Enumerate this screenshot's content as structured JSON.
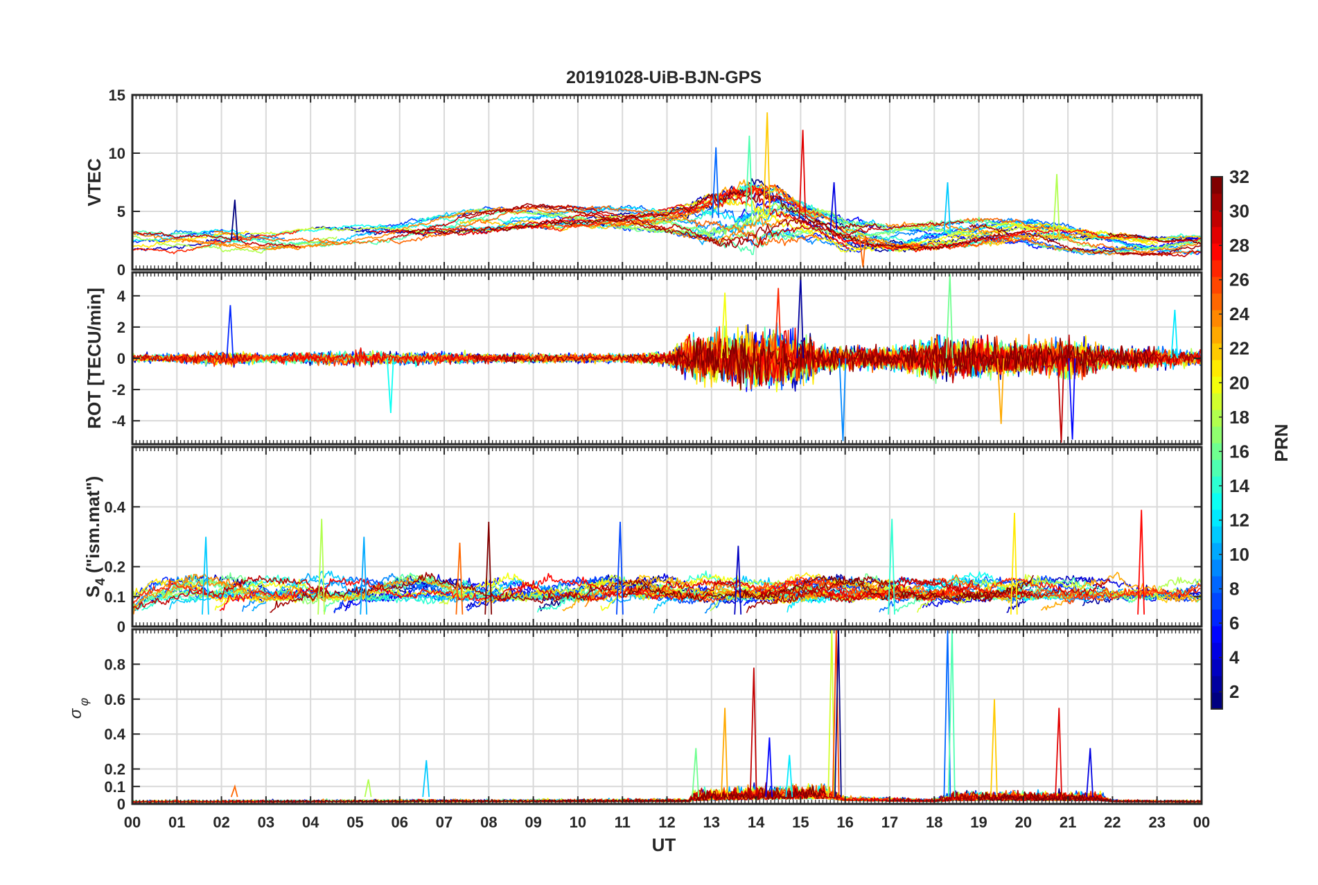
{
  "chart_data": {
    "type": "line",
    "title": "20191028-UiB-BJN-GPS",
    "xlabel": "UT",
    "x_tick_labels": [
      "00",
      "01",
      "02",
      "03",
      "04",
      "05",
      "06",
      "07",
      "08",
      "09",
      "10",
      "11",
      "12",
      "13",
      "14",
      "15",
      "16",
      "17",
      "18",
      "19",
      "20",
      "21",
      "22",
      "23",
      "00"
    ],
    "x_range_hours": [
      0,
      24
    ],
    "grid": true,
    "panels": [
      {
        "key": "vtec",
        "ylabel": "VTEC",
        "ylim": [
          0,
          15
        ],
        "yticks": [
          0,
          5,
          10,
          15
        ],
        "envelope": {
          "x": [
            0,
            1,
            2,
            3,
            4,
            5,
            6,
            7,
            8,
            9,
            10,
            11,
            12,
            12.5,
            13,
            13.5,
            14,
            14.5,
            15,
            15.5,
            16,
            17,
            18,
            19,
            20,
            21,
            22,
            23,
            24
          ],
          "base": [
            2.5,
            2.3,
            2.5,
            2.5,
            2.8,
            3.0,
            3.3,
            3.8,
            4.3,
            4.6,
            4.6,
            4.4,
            4.2,
            4.2,
            4.4,
            4.6,
            5.0,
            4.8,
            4.4,
            3.8,
            3.0,
            2.8,
            3.0,
            3.2,
            3.2,
            2.6,
            2.2,
            2.0,
            2.2
          ],
          "spread": [
            1.3,
            1.3,
            1.4,
            1.2,
            1.2,
            1.3,
            1.4,
            1.5,
            1.5,
            1.4,
            1.4,
            1.4,
            1.5,
            2.0,
            3.0,
            3.5,
            4.0,
            3.5,
            2.5,
            2.0,
            2.0,
            1.6,
            1.7,
            1.8,
            1.6,
            1.6,
            1.3,
            1.2,
            1.2
          ]
        },
        "peaks": [
          {
            "x": 2.3,
            "y": 6.0
          },
          {
            "x": 13.1,
            "y": 10.5
          },
          {
            "x": 13.85,
            "y": 11.5
          },
          {
            "x": 14.25,
            "y": 13.5
          },
          {
            "x": 15.05,
            "y": 12.0
          },
          {
            "x": 15.75,
            "y": 7.5
          },
          {
            "x": 18.3,
            "y": 7.5
          },
          {
            "x": 20.75,
            "y": 8.2
          },
          {
            "x": 16.4,
            "y": 0.2
          }
        ]
      },
      {
        "key": "rot",
        "ylabel": "ROT [TECU/min]",
        "ylim": [
          -5.5,
          5.5
        ],
        "yticks": [
          -4,
          -2,
          0,
          2,
          4
        ],
        "envelope": {
          "x": [
            0,
            1,
            2,
            3,
            4,
            5,
            6,
            7,
            8,
            9,
            10,
            11,
            12,
            12.5,
            13,
            14,
            15,
            15.5,
            16,
            17,
            18,
            19,
            20,
            21,
            22,
            23,
            24
          ],
          "amp": [
            0.3,
            0.3,
            0.5,
            0.3,
            0.4,
            0.5,
            0.4,
            0.4,
            0.3,
            0.3,
            0.3,
            0.3,
            0.4,
            1.4,
            1.7,
            1.9,
            1.8,
            0.9,
            0.8,
            0.7,
            1.4,
            1.3,
            1.0,
            1.4,
            0.7,
            0.7,
            0.5
          ]
        },
        "peaks": [
          {
            "x": 2.2,
            "y": 3.4
          },
          {
            "x": 5.8,
            "y": -3.5
          },
          {
            "x": 13.3,
            "y": 4.2
          },
          {
            "x": 14.5,
            "y": 4.5
          },
          {
            "x": 15.0,
            "y": 5.3
          },
          {
            "x": 15.95,
            "y": -5.3
          },
          {
            "x": 18.35,
            "y": 5.4
          },
          {
            "x": 19.5,
            "y": -4.2
          },
          {
            "x": 20.85,
            "y": -5.4
          },
          {
            "x": 21.1,
            "y": -5.2
          },
          {
            "x": 23.4,
            "y": 3.1
          }
        ]
      },
      {
        "key": "s4",
        "ylabel": "S4 (\"ism.mat\")",
        "ylabel_base": "S",
        "ylabel_sub": "4",
        "ylabel_rest": " (\"ism.mat\")",
        "ylim": [
          0,
          0.6
        ],
        "yticks": [
          0,
          0.1,
          0.2,
          0.4
        ],
        "envelope": {
          "x": [
            0,
            24
          ],
          "base": [
            0.05,
            0.05
          ],
          "amp": [
            0.07,
            0.07
          ]
        },
        "peaks": [
          {
            "x": 1.65,
            "y": 0.3
          },
          {
            "x": 4.25,
            "y": 0.36
          },
          {
            "x": 7.35,
            "y": 0.28
          },
          {
            "x": 8.0,
            "y": 0.35
          },
          {
            "x": 10.95,
            "y": 0.35
          },
          {
            "x": 17.05,
            "y": 0.36
          },
          {
            "x": 19.8,
            "y": 0.38
          },
          {
            "x": 22.65,
            "y": 0.39
          },
          {
            "x": 13.6,
            "y": 0.27
          },
          {
            "x": 5.2,
            "y": 0.3
          }
        ]
      },
      {
        "key": "sigphi",
        "ylabel": "σ φ",
        "ylabel_sigma": "σ",
        "ylabel_phi": "φ",
        "ylim": [
          0,
          1
        ],
        "yticks": [
          0,
          0.1,
          0.2,
          0.4,
          0.6,
          0.8
        ],
        "envelope": {
          "x": [
            0,
            12.5,
            12.6,
            15.5,
            16,
            18,
            18.5,
            21.7,
            22,
            24
          ],
          "base": [
            0.015,
            0.02,
            0.03,
            0.05,
            0.03,
            0.02,
            0.03,
            0.03,
            0.02,
            0.015
          ],
          "amp": [
            0.02,
            0.03,
            0.12,
            0.14,
            0.04,
            0.03,
            0.1,
            0.08,
            0.02,
            0.02
          ]
        },
        "peaks": [
          {
            "x": 12.65,
            "y": 0.32
          },
          {
            "x": 13.3,
            "y": 0.55
          },
          {
            "x": 13.95,
            "y": 0.78
          },
          {
            "x": 14.3,
            "y": 0.38
          },
          {
            "x": 14.75,
            "y": 0.28
          },
          {
            "x": 15.7,
            "y": 1.0
          },
          {
            "x": 15.8,
            "y": 1.0
          },
          {
            "x": 15.85,
            "y": 1.0
          },
          {
            "x": 18.3,
            "y": 1.0
          },
          {
            "x": 18.4,
            "y": 1.0
          },
          {
            "x": 19.35,
            "y": 0.6
          },
          {
            "x": 20.8,
            "y": 0.55
          },
          {
            "x": 21.5,
            "y": 0.32
          },
          {
            "x": 6.6,
            "y": 0.25
          },
          {
            "x": 5.3,
            "y": 0.14
          },
          {
            "x": 2.3,
            "y": 0.1
          }
        ]
      }
    ],
    "colorbar": {
      "label": "PRN",
      "colormap": "jet",
      "range": [
        1,
        32
      ],
      "ticks": [
        2,
        4,
        6,
        8,
        10,
        12,
        14,
        16,
        18,
        20,
        22,
        24,
        26,
        28,
        30,
        32
      ]
    },
    "series_count": 32
  }
}
